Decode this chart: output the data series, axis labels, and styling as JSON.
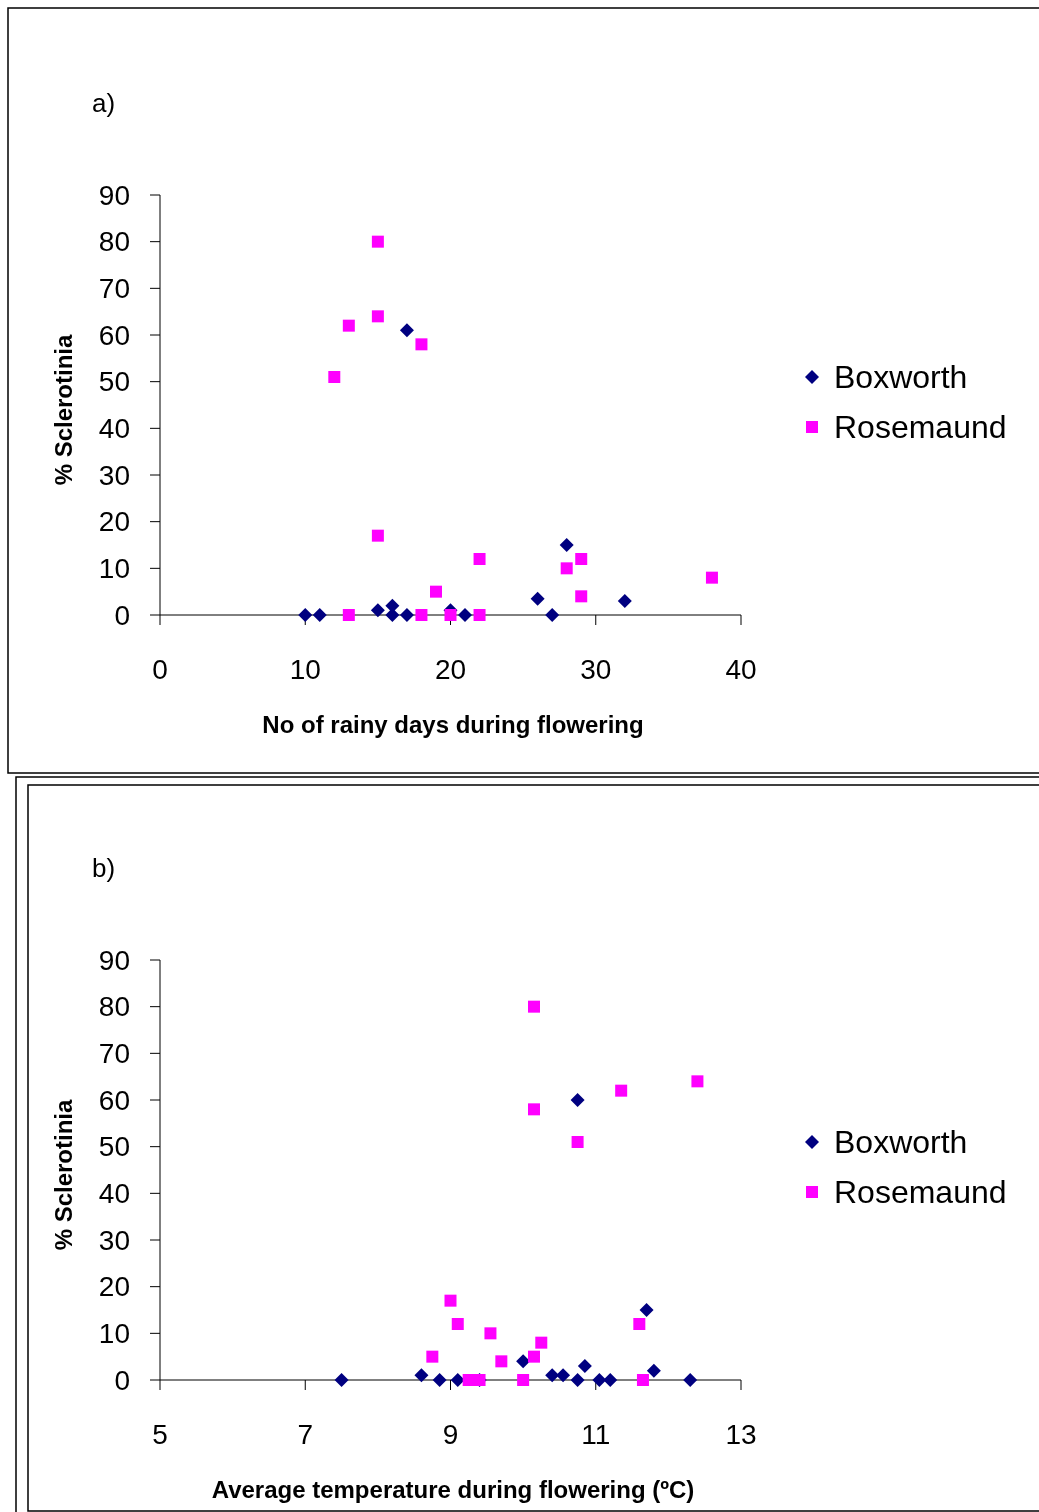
{
  "chart_data": [
    {
      "type": "scatter",
      "title": "a)",
      "xlabel": "No of rainy days during flowering",
      "ylabel": "% Sclerotinia",
      "xlim": [
        0,
        40
      ],
      "xticks": [
        0,
        10,
        20,
        30,
        40
      ],
      "ylim": [
        0,
        90
      ],
      "yticks": [
        0,
        10,
        20,
        30,
        40,
        50,
        60,
        70,
        80,
        90
      ],
      "legend": "right",
      "grid": false,
      "series": [
        {
          "name": "Boxworth",
          "color": "#000080",
          "marker": "diamond",
          "x": [
            10,
            11,
            15,
            16,
            16,
            17,
            20,
            21,
            26,
            27,
            28,
            32,
            17
          ],
          "values": [
            0,
            0,
            1,
            2,
            0,
            0,
            1,
            0,
            3.5,
            0,
            15,
            3,
            61
          ]
        },
        {
          "name": "Rosemaund",
          "color": "#ff00ff",
          "marker": "square",
          "x": [
            15,
            13,
            15,
            18,
            12,
            15,
            22,
            19,
            13,
            18,
            20,
            22,
            28,
            29,
            29,
            38
          ],
          "values": [
            80,
            62,
            64,
            58,
            51,
            17,
            12,
            5,
            0,
            0,
            0,
            0,
            10,
            12,
            4,
            8
          ]
        }
      ]
    },
    {
      "type": "scatter",
      "title": "b)",
      "xlabel": "Average temperature during flowering (ºC)",
      "ylabel": "% Sclerotinia",
      "xlim": [
        5,
        13
      ],
      "xticks": [
        5,
        7,
        9,
        11,
        13
      ],
      "ylim": [
        0,
        90
      ],
      "yticks": [
        0,
        10,
        20,
        30,
        40,
        50,
        60,
        70,
        80,
        90
      ],
      "legend": "right",
      "grid": false,
      "series": [
        {
          "name": "Boxworth",
          "color": "#000080",
          "marker": "diamond",
          "x": [
            7.5,
            8.6,
            8.85,
            9.1,
            9.4,
            10,
            10.4,
            10.55,
            10.75,
            10.85,
            11.05,
            11.2,
            11.7,
            11.8,
            12.3,
            10.75
          ],
          "values": [
            0,
            1,
            0,
            0,
            0,
            4,
            1,
            1,
            0,
            3,
            0,
            0,
            15,
            2,
            0,
            60
          ]
        },
        {
          "name": "Rosemaund",
          "color": "#ff00ff",
          "marker": "square",
          "x": [
            10.15,
            10.15,
            10.75,
            11.35,
            12.4,
            9,
            9.1,
            9.55,
            8.75,
            9.7,
            10.15,
            10.25,
            11.6,
            9.25,
            9.4,
            10,
            11.65
          ],
          "values": [
            80,
            58,
            51,
            62,
            64,
            17,
            12,
            10,
            5,
            4,
            5,
            8,
            12,
            0,
            0,
            0,
            0
          ]
        }
      ]
    }
  ]
}
